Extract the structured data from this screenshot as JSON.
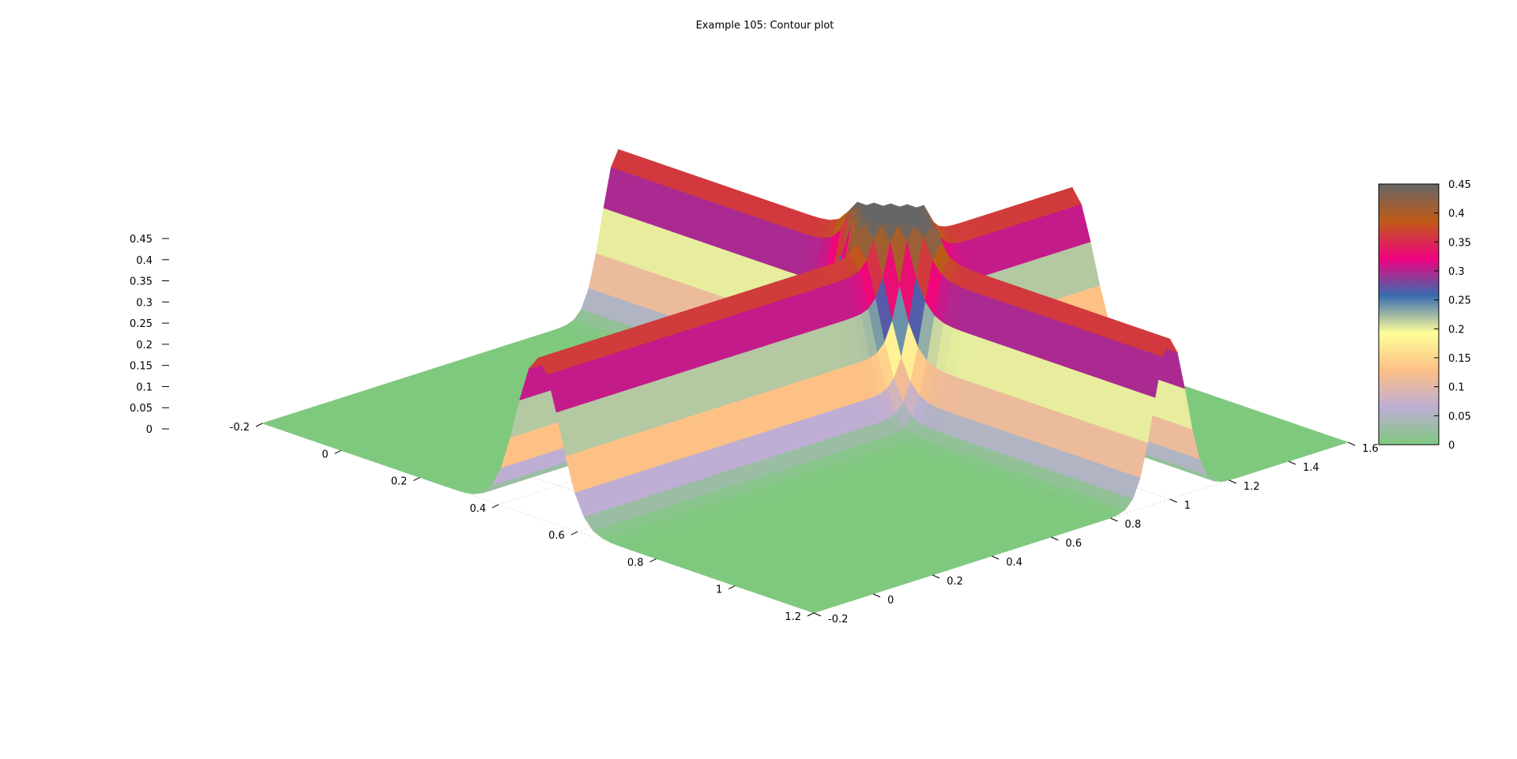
{
  "chart_data": {
    "type": "surface3d",
    "title": "Example 105: Contour plot",
    "xlabel": "",
    "ylabel": "",
    "zlabel": "",
    "x_axis": {
      "range": [
        -0.2,
        1.2
      ],
      "ticks": [
        -0.2,
        0,
        0.2,
        0.4,
        0.6,
        0.8,
        1,
        1.2
      ],
      "tick_labels": [
        "-0.2",
        "0",
        "0.2",
        "0.4",
        "0.6",
        "0.8",
        "1",
        "1.2"
      ]
    },
    "y_axis": {
      "range": [
        -0.2,
        1.6
      ],
      "ticks": [
        -0.2,
        0,
        0.2,
        0.4,
        0.6,
        0.8,
        1,
        1.2,
        1.4,
        1.6
      ],
      "tick_labels": [
        "-0.2",
        "0",
        "0.2",
        "0.4",
        "0.6",
        "0.8",
        "1",
        "1.2",
        "1.4",
        "1.6"
      ]
    },
    "z_axis": {
      "range": [
        0,
        0.45
      ],
      "ticks": [
        0,
        0.05,
        0.1,
        0.15,
        0.2,
        0.25,
        0.3,
        0.35,
        0.4,
        0.45
      ],
      "tick_labels": [
        "0",
        "0.05",
        "0.1",
        "0.15",
        "0.2",
        "0.25",
        "0.3",
        "0.35",
        "0.4",
        "0.45"
      ]
    },
    "colorbar": {
      "range": [
        0,
        0.45
      ],
      "ticks": [
        0,
        0.05,
        0.1,
        0.15,
        0.2,
        0.25,
        0.3,
        0.35,
        0.4,
        0.45
      ],
      "tick_labels": [
        "0",
        "0.05",
        "0.1",
        "0.15",
        "0.2",
        "0.25",
        "0.3",
        "0.35",
        "0.4",
        "0.45"
      ],
      "colors": [
        "#7fc97f",
        "#beaed4",
        "#fdc086",
        "#ffff99",
        "#386cb0",
        "#f0027f",
        "#bf5b17",
        "#666666"
      ]
    },
    "surface": {
      "ridges": [
        {
          "axis": "x",
          "center": 0.5,
          "height": 0.38
        },
        {
          "axis": "y",
          "center": 1.0,
          "height": 0.38
        }
      ],
      "peak_at_intersection": 0.45
    },
    "grid": true
  }
}
